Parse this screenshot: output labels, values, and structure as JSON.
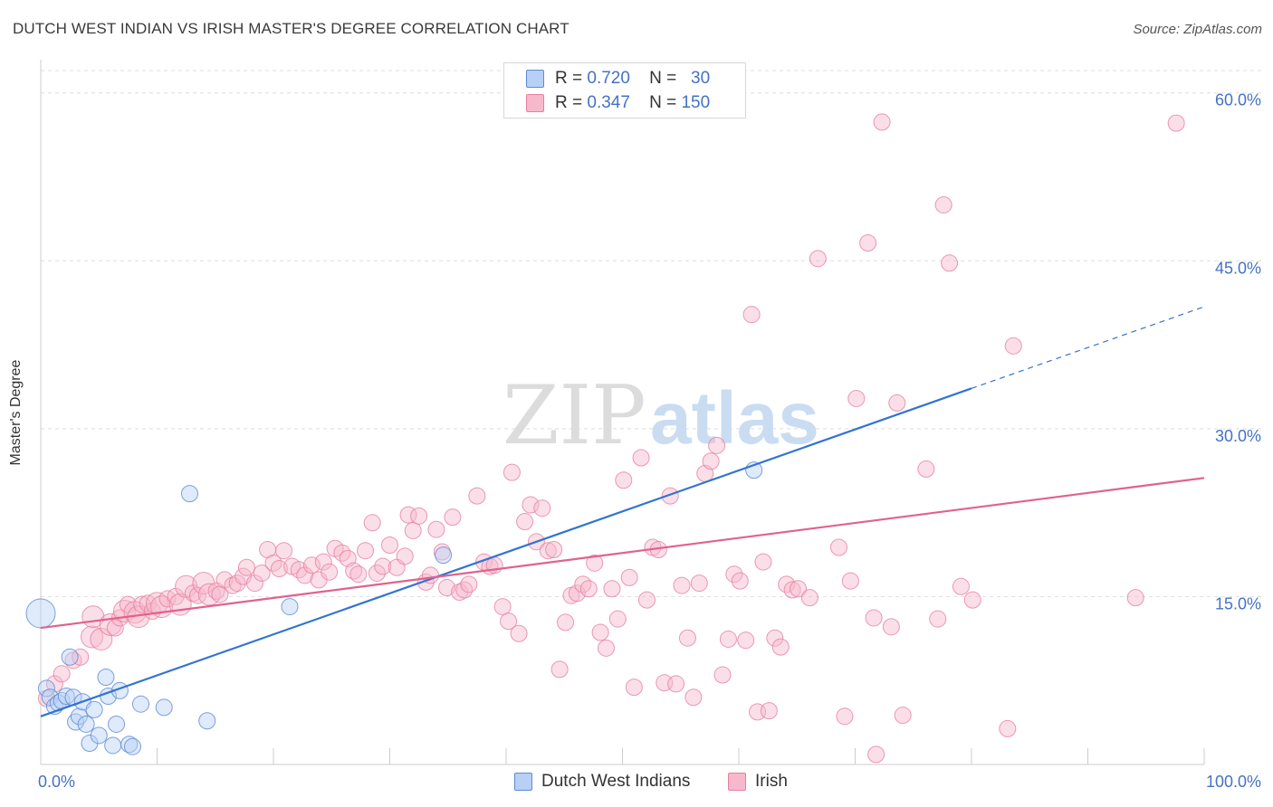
{
  "title": "DUTCH WEST INDIAN VS IRISH MASTER'S DEGREE CORRELATION CHART",
  "source": "Source: ZipAtlas.com",
  "watermark": {
    "zip": "ZIP",
    "atlas": "atlas"
  },
  "colors": {
    "blue_fill": "#b8d0f5",
    "blue_stroke": "#5b8ad6",
    "blue_line": "#3374d0",
    "pink_fill": "#f7b8cc",
    "pink_stroke": "#e77fa0",
    "pink_line": "#e0628c",
    "axis_text": "#4472c4",
    "grid": "#dddddd"
  },
  "stats": [
    {
      "r_label": "R =",
      "r_value": "0.720",
      "n_label": "N =",
      "n_value": "30",
      "series": "blue"
    },
    {
      "r_label": "R =",
      "r_value": "0.347",
      "n_label": "N =",
      "n_value": "150",
      "series": "pink"
    }
  ],
  "chart_data": {
    "type": "scatter",
    "title": "DUTCH WEST INDIAN VS IRISH MASTER'S DEGREE CORRELATION CHART",
    "xlabel": "",
    "ylabel": "Master's Degree",
    "xlim": [
      0,
      100
    ],
    "ylim": [
      0,
      62
    ],
    "x_tick_labels": [
      "0.0%",
      "100.0%"
    ],
    "y_ticks": [
      15,
      30,
      45,
      60
    ],
    "y_tick_labels": [
      "15.0%",
      "30.0%",
      "45.0%",
      "60.0%"
    ],
    "grid": true,
    "legend": [
      "Dutch West Indians",
      "Irish"
    ],
    "series": [
      {
        "name": "Dutch West Indians",
        "color": "blue",
        "trend": {
          "x0": 0,
          "y0": 4.3,
          "x1": 80,
          "y1": 33.6,
          "dashed_to_x": 100,
          "dashed_to_y": 40.9
        },
        "points": [
          [
            0,
            13.5,
            16
          ],
          [
            0.5,
            6.8,
            9
          ],
          [
            0.8,
            6,
            9
          ],
          [
            1.2,
            5.2,
            9
          ],
          [
            1.5,
            5.5,
            9
          ],
          [
            1.8,
            5.7,
            9
          ],
          [
            2.2,
            6.1,
            9
          ],
          [
            2.5,
            9.6,
            9
          ],
          [
            2.8,
            6,
            9
          ],
          [
            3.0,
            3.8,
            9
          ],
          [
            3.3,
            4.3,
            9
          ],
          [
            3.6,
            5.6,
            9
          ],
          [
            3.9,
            3.6,
            9
          ],
          [
            4.2,
            1.9,
            9
          ],
          [
            4.6,
            4.9,
            9
          ],
          [
            5.0,
            2.6,
            9
          ],
          [
            5.6,
            7.8,
            9
          ],
          [
            5.8,
            6.1,
            9
          ],
          [
            6.2,
            1.7,
            9
          ],
          [
            6.5,
            3.6,
            9
          ],
          [
            6.8,
            6.6,
            9
          ],
          [
            7.6,
            1.8,
            9
          ],
          [
            7.9,
            1.6,
            9
          ],
          [
            8.6,
            5.4,
            9
          ],
          [
            10.6,
            5.1,
            9
          ],
          [
            12.8,
            24.2,
            9
          ],
          [
            14.3,
            3.9,
            9
          ],
          [
            21.4,
            14.1,
            9
          ],
          [
            34.6,
            18.7,
            9
          ],
          [
            61.3,
            26.3,
            9
          ]
        ]
      },
      {
        "name": "Irish",
        "color": "pink",
        "trend": {
          "x0": 0,
          "y0": 12.2,
          "x1": 100,
          "y1": 25.6
        },
        "points": [
          [
            0.5,
            5.9,
            9
          ],
          [
            1.2,
            7.2,
            9
          ],
          [
            1.8,
            8.1,
            9
          ],
          [
            2.8,
            9.3,
            9
          ],
          [
            3.4,
            9.6,
            9
          ],
          [
            4.4,
            11.4,
            12
          ],
          [
            4.5,
            13.2,
            12
          ],
          [
            5.2,
            11.2,
            12
          ],
          [
            6.0,
            12.5,
            12
          ],
          [
            6.4,
            12.2,
            9
          ],
          [
            6.8,
            13.1,
            9
          ],
          [
            7.2,
            13.7,
            12
          ],
          [
            7.5,
            14.3,
            9
          ],
          [
            8.1,
            13.6,
            12
          ],
          [
            8.4,
            13.2,
            12
          ],
          [
            8.7,
            14.3,
            9
          ],
          [
            9.2,
            14.4,
            9
          ],
          [
            9.6,
            13.7,
            9
          ],
          [
            10.0,
            14.4,
            12
          ],
          [
            10.4,
            14.1,
            12
          ],
          [
            10.9,
            14.8,
            9
          ],
          [
            11.6,
            15.0,
            9
          ],
          [
            12.0,
            14.3,
            12
          ],
          [
            12.5,
            15.9,
            12
          ],
          [
            13.1,
            15.3,
            9
          ],
          [
            13.5,
            15.1,
            9
          ],
          [
            14.0,
            16.2,
            12
          ],
          [
            14.5,
            15.2,
            12
          ],
          [
            15.1,
            15.5,
            9
          ],
          [
            15.4,
            15.2,
            9
          ],
          [
            15.8,
            16.5,
            9
          ],
          [
            16.5,
            16.0,
            9
          ],
          [
            16.9,
            16.2,
            9
          ],
          [
            17.4,
            16.8,
            9
          ],
          [
            17.7,
            17.6,
            9
          ],
          [
            18.4,
            16.2,
            9
          ],
          [
            19.0,
            17.1,
            9
          ],
          [
            19.5,
            19.2,
            9
          ],
          [
            20.0,
            18.0,
            9
          ],
          [
            20.5,
            17.5,
            9
          ],
          [
            20.9,
            19.1,
            9
          ],
          [
            21.6,
            17.7,
            9
          ],
          [
            22.2,
            17.4,
            9
          ],
          [
            22.7,
            16.9,
            9
          ],
          [
            23.3,
            17.8,
            9
          ],
          [
            23.9,
            16.5,
            9
          ],
          [
            24.3,
            18.1,
            9
          ],
          [
            24.8,
            17.2,
            9
          ],
          [
            25.3,
            19.3,
            9
          ],
          [
            25.9,
            18.9,
            9
          ],
          [
            26.4,
            18.4,
            9
          ],
          [
            26.9,
            17.3,
            9
          ],
          [
            27.3,
            17.0,
            9
          ],
          [
            27.9,
            19.1,
            9
          ],
          [
            28.5,
            21.6,
            9
          ],
          [
            28.9,
            17.1,
            9
          ],
          [
            29.4,
            17.7,
            9
          ],
          [
            30.0,
            19.6,
            9
          ],
          [
            30.6,
            17.6,
            9
          ],
          [
            31.3,
            18.6,
            9
          ],
          [
            31.6,
            22.3,
            9
          ],
          [
            32.0,
            20.9,
            9
          ],
          [
            32.5,
            22.2,
            9
          ],
          [
            33.1,
            16.3,
            9
          ],
          [
            33.5,
            16.9,
            9
          ],
          [
            34.0,
            21.0,
            9
          ],
          [
            34.5,
            19.0,
            9
          ],
          [
            34.9,
            15.8,
            9
          ],
          [
            35.4,
            22.1,
            9
          ],
          [
            36.0,
            15.4,
            9
          ],
          [
            36.4,
            15.6,
            9
          ],
          [
            36.8,
            16.1,
            9
          ],
          [
            37.5,
            24.0,
            9
          ],
          [
            38.1,
            18.1,
            9
          ],
          [
            38.6,
            17.7,
            9
          ],
          [
            39.0,
            17.8,
            9
          ],
          [
            39.7,
            14.1,
            9
          ],
          [
            40.2,
            12.8,
            9
          ],
          [
            40.5,
            26.1,
            9
          ],
          [
            41.1,
            11.7,
            9
          ],
          [
            41.6,
            21.7,
            9
          ],
          [
            42.1,
            23.2,
            9
          ],
          [
            42.6,
            19.9,
            9
          ],
          [
            43.1,
            22.9,
            9
          ],
          [
            43.6,
            19.1,
            9
          ],
          [
            44.1,
            19.2,
            9
          ],
          [
            44.6,
            8.5,
            9
          ],
          [
            45.1,
            12.7,
            9
          ],
          [
            45.6,
            15.1,
            9
          ],
          [
            46.1,
            15.3,
            9
          ],
          [
            46.6,
            16.1,
            9
          ],
          [
            47.1,
            15.7,
            9
          ],
          [
            47.6,
            18.0,
            9
          ],
          [
            48.1,
            11.8,
            9
          ],
          [
            48.6,
            10.4,
            9
          ],
          [
            49.1,
            15.7,
            9
          ],
          [
            49.6,
            13.0,
            9
          ],
          [
            50.1,
            25.4,
            9
          ],
          [
            50.6,
            16.7,
            9
          ],
          [
            51.0,
            6.9,
            9
          ],
          [
            51.6,
            27.4,
            9
          ],
          [
            52.1,
            14.7,
            9
          ],
          [
            52.6,
            19.4,
            9
          ],
          [
            53.1,
            19.2,
            9
          ],
          [
            53.6,
            7.3,
            9
          ],
          [
            54.1,
            24.0,
            9
          ],
          [
            54.6,
            7.2,
            9
          ],
          [
            55.1,
            16.0,
            9
          ],
          [
            55.6,
            11.3,
            9
          ],
          [
            56.1,
            6.0,
            9
          ],
          [
            56.6,
            16.2,
            9
          ],
          [
            57.1,
            26.0,
            9
          ],
          [
            57.6,
            27.1,
            9
          ],
          [
            58.1,
            28.5,
            9
          ],
          [
            58.6,
            8.0,
            9
          ],
          [
            59.1,
            11.2,
            9
          ],
          [
            59.6,
            17.0,
            9
          ],
          [
            60.1,
            16.4,
            9
          ],
          [
            60.6,
            11.1,
            9
          ],
          [
            61.1,
            40.2,
            9
          ],
          [
            61.6,
            4.7,
            9
          ],
          [
            62.1,
            18.1,
            9
          ],
          [
            62.6,
            4.8,
            9
          ],
          [
            63.1,
            11.3,
            9
          ],
          [
            63.6,
            10.5,
            9
          ],
          [
            64.1,
            16.1,
            9
          ],
          [
            64.6,
            15.6,
            9
          ],
          [
            65.1,
            15.7,
            9
          ],
          [
            66.1,
            14.9,
            9
          ],
          [
            66.8,
            45.2,
            9
          ],
          [
            68.6,
            19.4,
            9
          ],
          [
            69.1,
            4.3,
            9
          ],
          [
            69.6,
            16.4,
            9
          ],
          [
            70.1,
            32.7,
            9
          ],
          [
            71.1,
            46.6,
            9
          ],
          [
            71.6,
            13.1,
            9
          ],
          [
            71.8,
            0.9,
            9
          ],
          [
            72.3,
            57.4,
            9
          ],
          [
            73.1,
            12.3,
            9
          ],
          [
            73.6,
            32.3,
            9
          ],
          [
            74.1,
            4.4,
            9
          ],
          [
            76.1,
            26.4,
            9
          ],
          [
            77.1,
            13.0,
            9
          ],
          [
            77.6,
            50.0,
            9
          ],
          [
            78.1,
            44.8,
            9
          ],
          [
            79.1,
            15.9,
            9
          ],
          [
            80.1,
            14.7,
            9
          ],
          [
            83.1,
            3.2,
            9
          ],
          [
            83.6,
            37.4,
            9
          ],
          [
            94.1,
            14.9,
            9
          ],
          [
            97.6,
            57.3,
            9
          ]
        ]
      }
    ]
  }
}
